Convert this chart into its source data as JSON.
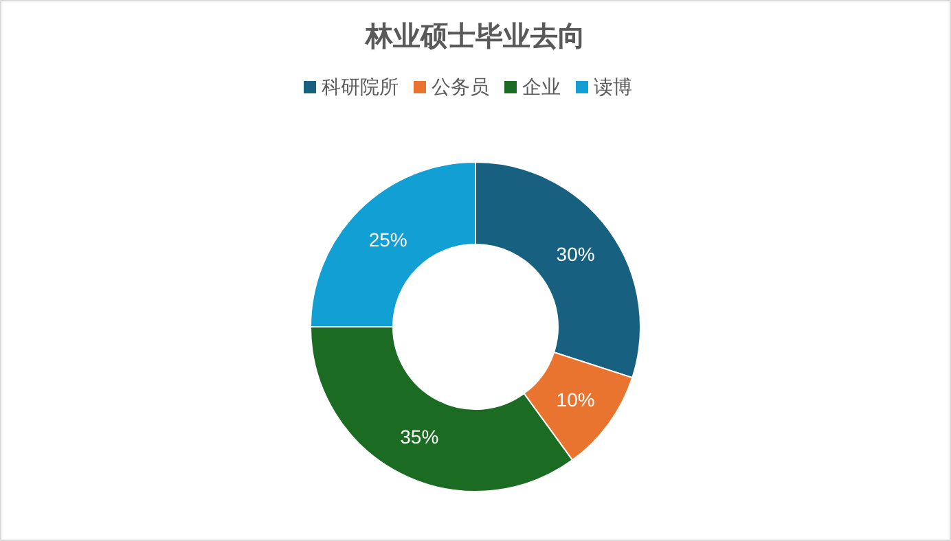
{
  "chart_data": {
    "type": "donut",
    "title": "林业硕士毕业去向",
    "categories": [
      "科研院所",
      "公务员",
      "企业",
      "读博"
    ],
    "values": [
      30,
      10,
      35,
      25
    ],
    "value_labels": [
      "30%",
      "10%",
      "35%",
      "25%"
    ],
    "colors": [
      "#17607f",
      "#e8742f",
      "#1b6b22",
      "#129fd4"
    ],
    "legend": "top"
  }
}
